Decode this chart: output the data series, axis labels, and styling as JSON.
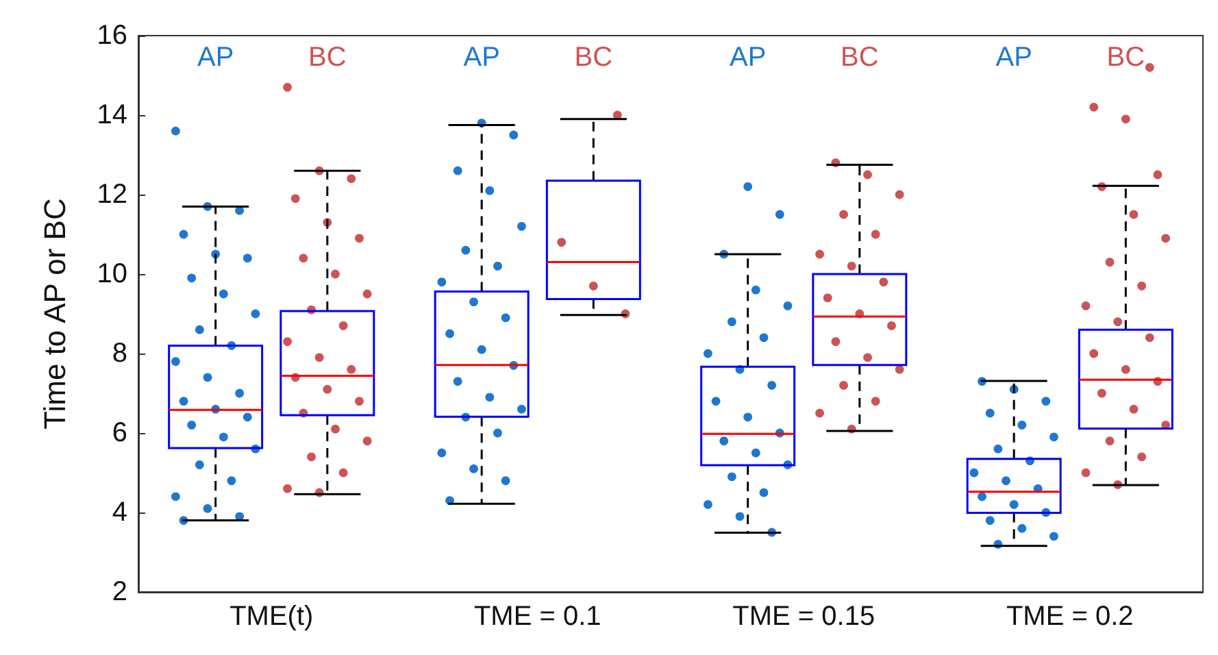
{
  "chart_data": {
    "type": "box",
    "ylabel": "Time to AP or BC",
    "categories": [
      "TME(t)",
      "TME = 0.1",
      "TME = 0.15",
      "TME = 0.2"
    ],
    "ylim": [
      2,
      16
    ],
    "yticks": [
      2,
      4,
      6,
      8,
      10,
      12,
      14,
      16
    ],
    "grid": false,
    "series": [
      {
        "color": "#0000ff",
        "boxes": [
          {
            "low": 3.8,
            "q1": 5.62,
            "median": 6.58,
            "q3": 8.2,
            "high": 11.7
          },
          {
            "low": 4.22,
            "q1": 6.41,
            "median": 7.71,
            "q3": 9.56,
            "high": 13.75
          },
          {
            "low": 3.49,
            "q1": 5.19,
            "median": 5.98,
            "q3": 7.67,
            "high": 10.5
          },
          {
            "low": 3.16,
            "q1": 3.99,
            "median": 4.52,
            "q3": 5.35,
            "high": 7.31
          }
        ]
      },
      {
        "color": "#0000ff",
        "boxes": [
          {
            "low": 4.46,
            "q1": 6.45,
            "median": 7.44,
            "q3": 9.07,
            "high": 12.6
          },
          {
            "low": 8.97,
            "q1": 9.37,
            "median": 10.3,
            "q3": 12.35,
            "high": 13.9
          },
          {
            "low": 6.05,
            "q1": 7.71,
            "median": 8.93,
            "q3": 10.0,
            "high": 12.75
          },
          {
            "low": 4.69,
            "q1": 6.11,
            "median": 7.34,
            "q3": 8.6,
            "high": 12.22
          }
        ]
      },
      {
        "type": "scatter",
        "name": "AP",
        "color": "#1f77d0",
        "x": [
          "TME(t)",
          "TME(t)",
          "TME(t)",
          "TME(t)",
          "TME(t)",
          "TME(t)",
          "TME(t)",
          "TME(t)",
          "TME(t)",
          "TME(t)",
          "TME(t)",
          "TME(t)",
          "TME(t)",
          "TME(t)",
          "TME(t)",
          "TME(t)",
          "TME(t)",
          "TME(t)",
          "TME(t)",
          "TME(t)",
          "TME(t)",
          "TME(t)",
          "TME(t)",
          "TME(t)",
          "TME(t)",
          "TME(t)",
          "TME = 0.1",
          "TME = 0.1",
          "TME = 0.1",
          "TME = 0.1",
          "TME = 0.1",
          "TME = 0.1",
          "TME = 0.1",
          "TME = 0.1",
          "TME = 0.1",
          "TME = 0.1",
          "TME = 0.1",
          "TME = 0.1",
          "TME = 0.1",
          "TME = 0.1",
          "TME = 0.1",
          "TME = 0.1",
          "TME = 0.1",
          "TME = 0.1",
          "TME = 0.1",
          "TME = 0.1",
          "TME = 0.1",
          "TME = 0.1",
          "TME = 0.15",
          "TME = 0.15",
          "TME = 0.15",
          "TME = 0.15",
          "TME = 0.15",
          "TME = 0.15",
          "TME = 0.15",
          "TME = 0.15",
          "TME = 0.15",
          "TME = 0.15",
          "TME = 0.15",
          "TME = 0.15",
          "TME = 0.15",
          "TME = 0.15",
          "TME = 0.15",
          "TME = 0.15",
          "TME = 0.15",
          "TME = 0.15",
          "TME = 0.15",
          "TME = 0.15",
          "TME = 0.15",
          "TME = 0.2",
          "TME = 0.2",
          "TME = 0.2",
          "TME = 0.2",
          "TME = 0.2",
          "TME = 0.2",
          "TME = 0.2",
          "TME = 0.2",
          "TME = 0.2",
          "TME = 0.2",
          "TME = 0.2",
          "TME = 0.2",
          "TME = 0.2",
          "TME = 0.2",
          "TME = 0.2",
          "TME = 0.2",
          "TME = 0.2",
          "TME = 0.2"
        ],
        "values": [
          13.6,
          11.7,
          11.6,
          11.0,
          10.5,
          10.4,
          9.9,
          9.5,
          9.0,
          8.6,
          8.2,
          7.8,
          7.4,
          7.0,
          6.8,
          6.6,
          6.4,
          6.2,
          5.9,
          5.6,
          5.2,
          4.8,
          4.4,
          4.1,
          3.9,
          3.8,
          13.8,
          13.5,
          12.6,
          12.1,
          11.2,
          10.6,
          10.2,
          9.8,
          9.3,
          8.9,
          8.5,
          8.1,
          7.7,
          7.3,
          6.9,
          6.6,
          6.4,
          6.0,
          5.5,
          5.1,
          4.8,
          4.3,
          12.2,
          11.5,
          10.5,
          9.6,
          9.2,
          8.8,
          8.4,
          8.0,
          7.6,
          7.2,
          6.8,
          6.4,
          6.0,
          5.8,
          5.5,
          5.2,
          4.9,
          4.5,
          4.2,
          3.9,
          3.5,
          7.3,
          7.1,
          6.8,
          6.5,
          6.2,
          5.9,
          5.6,
          5.3,
          5.0,
          4.8,
          4.6,
          4.4,
          4.2,
          4.0,
          3.8,
          3.6,
          3.4,
          3.2
        ]
      },
      {
        "type": "scatter",
        "name": "BC",
        "color": "#cd5355",
        "x": [
          "TME(t)",
          "TME(t)",
          "TME(t)",
          "TME(t)",
          "TME(t)",
          "TME(t)",
          "TME(t)",
          "TME(t)",
          "TME(t)",
          "TME(t)",
          "TME(t)",
          "TME(t)",
          "TME(t)",
          "TME(t)",
          "TME(t)",
          "TME(t)",
          "TME(t)",
          "TME(t)",
          "TME(t)",
          "TME(t)",
          "TME(t)",
          "TME(t)",
          "TME(t)",
          "TME(t)",
          "TME = 0.1",
          "TME = 0.1",
          "TME = 0.1",
          "TME = 0.1",
          "TME = 0.15",
          "TME = 0.15",
          "TME = 0.15",
          "TME = 0.15",
          "TME = 0.15",
          "TME = 0.15",
          "TME = 0.15",
          "TME = 0.15",
          "TME = 0.15",
          "TME = 0.15",
          "TME = 0.15",
          "TME = 0.15",
          "TME = 0.15",
          "TME = 0.15",
          "TME = 0.15",
          "TME = 0.15",
          "TME = 0.15",
          "TME = 0.15",
          "TME = 0.2",
          "TME = 0.2",
          "TME = 0.2",
          "TME = 0.2",
          "TME = 0.2",
          "TME = 0.2",
          "TME = 0.2",
          "TME = 0.2",
          "TME = 0.2",
          "TME = 0.2",
          "TME = 0.2",
          "TME = 0.2",
          "TME = 0.2",
          "TME = 0.2",
          "TME = 0.2",
          "TME = 0.2",
          "TME = 0.2",
          "TME = 0.2",
          "TME = 0.2",
          "TME = 0.2",
          "TME = 0.2",
          "TME = 0.2"
        ],
        "values": [
          14.7,
          12.6,
          12.4,
          11.9,
          11.3,
          10.9,
          10.4,
          10.0,
          9.5,
          9.1,
          8.7,
          8.3,
          7.9,
          7.6,
          7.4,
          7.1,
          6.8,
          6.5,
          6.1,
          5.8,
          5.4,
          5.0,
          4.6,
          4.5,
          14.0,
          10.8,
          9.7,
          9.0,
          12.8,
          12.5,
          12.0,
          11.5,
          11.0,
          10.5,
          10.2,
          9.8,
          9.4,
          9.0,
          8.7,
          8.3,
          7.9,
          7.6,
          7.2,
          6.8,
          6.5,
          6.1,
          15.2,
          14.2,
          13.9,
          12.5,
          12.2,
          11.5,
          10.9,
          10.3,
          9.7,
          9.2,
          8.8,
          8.4,
          8.0,
          7.6,
          7.3,
          7.0,
          6.6,
          6.2,
          5.8,
          5.4,
          5.0,
          4.7
        ]
      }
    ]
  }
}
